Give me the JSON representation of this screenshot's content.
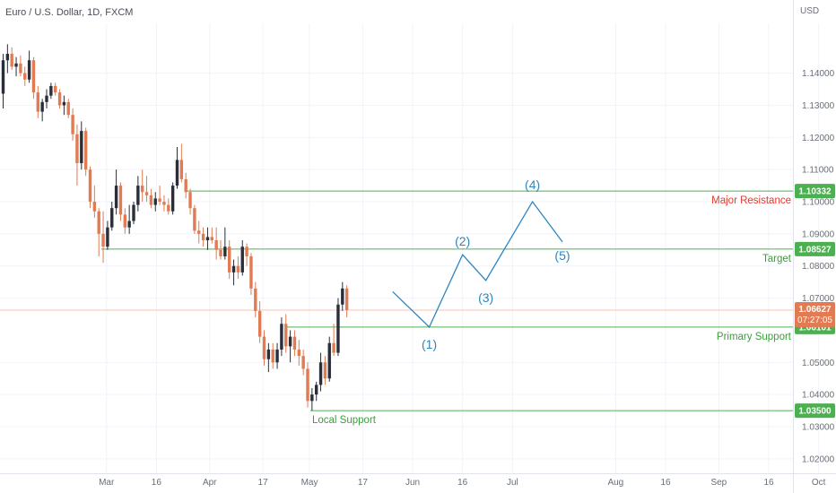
{
  "header": {
    "symbol_title": "Euro / U.S. Dollar, 1D, FXCM",
    "currency": "USD"
  },
  "colors": {
    "up": "#2a2e39",
    "down": "#e07b53",
    "level_line": "#4caf50",
    "wave": "#2e86c1",
    "resistance_label": "#e03b2e",
    "support_label": "#3b9e3b",
    "current_price": "#e07b53",
    "grid": "#f0f3fa"
  },
  "chart_data": {
    "type": "candlestick",
    "title": "Euro / U.S. Dollar, 1D, FXCM",
    "ylabel": "USD",
    "y_ticks": [
      "1.14000",
      "1.13000",
      "1.12000",
      "1.11000",
      "1.10000",
      "1.09000",
      "1.08000",
      "1.07000",
      "1.05000",
      "1.04000",
      "1.03000",
      "1.02000"
    ],
    "x_ticks": [
      "Mar",
      "16",
      "Apr",
      "17",
      "May",
      "17",
      "Jun",
      "16",
      "Jul",
      "Aug",
      "16",
      "Sep",
      "16",
      "Oct"
    ],
    "ylim": [
      1.0155,
      1.1555
    ],
    "current_price": {
      "value": "1.06627",
      "countdown": "07:27:05"
    },
    "levels": [
      {
        "name": "Major Resistance",
        "value": "1.10332",
        "label_color": "resistance"
      },
      {
        "name": "Target",
        "value": "1.08527",
        "label_color": "support"
      },
      {
        "name": "Primary Support",
        "value": "1.06101",
        "label_color": "support"
      },
      {
        "name": "Local Support",
        "value": "1.03500",
        "label_color": "support"
      }
    ],
    "candles": [
      [
        1.1336,
        1.146,
        1.129,
        1.144
      ],
      [
        1.144,
        1.149,
        1.14,
        1.146
      ],
      [
        1.146,
        1.148,
        1.141,
        1.142
      ],
      [
        1.142,
        1.145,
        1.139,
        1.143
      ],
      [
        1.143,
        1.1455,
        1.139,
        1.14
      ],
      [
        1.14,
        1.142,
        1.136,
        1.138
      ],
      [
        1.138,
        1.147,
        1.137,
        1.144
      ],
      [
        1.144,
        1.145,
        1.132,
        1.134
      ],
      [
        1.134,
        1.136,
        1.126,
        1.128
      ],
      [
        1.128,
        1.132,
        1.125,
        1.131
      ],
      [
        1.131,
        1.135,
        1.129,
        1.133
      ],
      [
        1.133,
        1.137,
        1.132,
        1.136
      ],
      [
        1.136,
        1.137,
        1.133,
        1.134
      ],
      [
        1.134,
        1.135,
        1.129,
        1.13
      ],
      [
        1.13,
        1.133,
        1.127,
        1.131
      ],
      [
        1.131,
        1.132,
        1.126,
        1.127
      ],
      [
        1.127,
        1.129,
        1.119,
        1.121
      ],
      [
        1.121,
        1.124,
        1.105,
        1.112
      ],
      [
        1.112,
        1.125,
        1.11,
        1.122
      ],
      [
        1.122,
        1.123,
        1.108,
        1.11
      ],
      [
        1.11,
        1.111,
        1.098,
        1.1
      ],
      [
        1.1,
        1.105,
        1.095,
        1.097
      ],
      [
        1.097,
        1.098,
        1.083,
        1.09
      ],
      [
        1.09,
        1.097,
        1.081,
        1.086
      ],
      [
        1.086,
        1.094,
        1.085,
        1.092
      ],
      [
        1.092,
        1.1,
        1.091,
        1.098
      ],
      [
        1.098,
        1.11,
        1.096,
        1.105
      ],
      [
        1.105,
        1.106,
        1.094,
        1.096
      ],
      [
        1.096,
        1.098,
        1.09,
        1.092
      ],
      [
        1.092,
        1.099,
        1.09,
        1.094
      ],
      [
        1.094,
        1.1,
        1.093,
        1.099
      ],
      [
        1.099,
        1.108,
        1.097,
        1.105
      ],
      [
        1.105,
        1.11,
        1.1,
        1.103
      ],
      [
        1.103,
        1.108,
        1.1,
        1.102
      ],
      [
        1.102,
        1.104,
        1.098,
        1.099
      ],
      [
        1.099,
        1.103,
        1.097,
        1.101
      ],
      [
        1.101,
        1.105,
        1.099,
        1.1
      ],
      [
        1.1,
        1.102,
        1.097,
        1.099
      ],
      [
        1.099,
        1.101,
        1.096,
        1.097
      ],
      [
        1.097,
        1.106,
        1.096,
        1.105
      ],
      [
        1.105,
        1.117,
        1.104,
        1.113
      ],
      [
        1.113,
        1.118,
        1.106,
        1.107
      ],
      [
        1.107,
        1.109,
        1.101,
        1.103
      ],
      [
        1.103,
        1.104,
        1.096,
        1.098
      ],
      [
        1.098,
        1.099,
        1.09,
        1.091
      ],
      [
        1.091,
        1.094,
        1.087,
        1.09
      ],
      [
        1.09,
        1.092,
        1.086,
        1.088
      ],
      [
        1.088,
        1.092,
        1.085,
        1.089
      ],
      [
        1.089,
        1.092,
        1.087,
        1.088
      ],
      [
        1.088,
        1.092,
        1.082,
        1.085
      ],
      [
        1.085,
        1.088,
        1.082,
        1.083
      ],
      [
        1.083,
        1.092,
        1.082,
        1.086
      ],
      [
        1.086,
        1.088,
        1.076,
        1.078
      ],
      [
        1.078,
        1.082,
        1.074,
        1.08
      ],
      [
        1.08,
        1.083,
        1.076,
        1.078
      ],
      [
        1.078,
        1.088,
        1.077,
        1.086
      ],
      [
        1.086,
        1.087,
        1.08,
        1.083
      ],
      [
        1.083,
        1.084,
        1.071,
        1.073
      ],
      [
        1.073,
        1.075,
        1.064,
        1.066
      ],
      [
        1.066,
        1.069,
        1.056,
        1.058
      ],
      [
        1.058,
        1.06,
        1.049,
        1.051
      ],
      [
        1.051,
        1.056,
        1.047,
        1.054
      ],
      [
        1.054,
        1.056,
        1.048,
        1.05
      ],
      [
        1.05,
        1.056,
        1.048,
        1.054
      ],
      [
        1.054,
        1.064,
        1.052,
        1.062
      ],
      [
        1.062,
        1.065,
        1.053,
        1.055
      ],
      [
        1.055,
        1.06,
        1.05,
        1.058
      ],
      [
        1.058,
        1.06,
        1.052,
        1.054
      ],
      [
        1.054,
        1.057,
        1.049,
        1.052
      ],
      [
        1.052,
        1.054,
        1.046,
        1.048
      ],
      [
        1.048,
        1.05,
        1.036,
        1.038
      ],
      [
        1.038,
        1.042,
        1.035,
        1.04
      ],
      [
        1.04,
        1.044,
        1.038,
        1.043
      ],
      [
        1.043,
        1.053,
        1.041,
        1.05
      ],
      [
        1.05,
        1.052,
        1.043,
        1.045
      ],
      [
        1.045,
        1.058,
        1.044,
        1.056
      ],
      [
        1.056,
        1.062,
        1.052,
        1.053
      ],
      [
        1.053,
        1.07,
        1.052,
        1.068
      ],
      [
        1.068,
        1.075,
        1.066,
        1.073
      ],
      [
        1.073,
        1.074,
        1.064,
        1.0663
      ]
    ],
    "wave_path": [
      [
        "2022-05-26",
        1.072
      ],
      [
        "2022-06-06",
        1.061
      ],
      [
        "2022-06-16",
        1.0835
      ],
      [
        "2022-06-23",
        1.0755
      ],
      [
        "2022-07-07",
        1.1
      ],
      [
        "2022-07-16",
        1.0875
      ]
    ],
    "wave_labels": [
      "(1)",
      "(2)",
      "(3)",
      "(4)",
      "(5)"
    ]
  }
}
